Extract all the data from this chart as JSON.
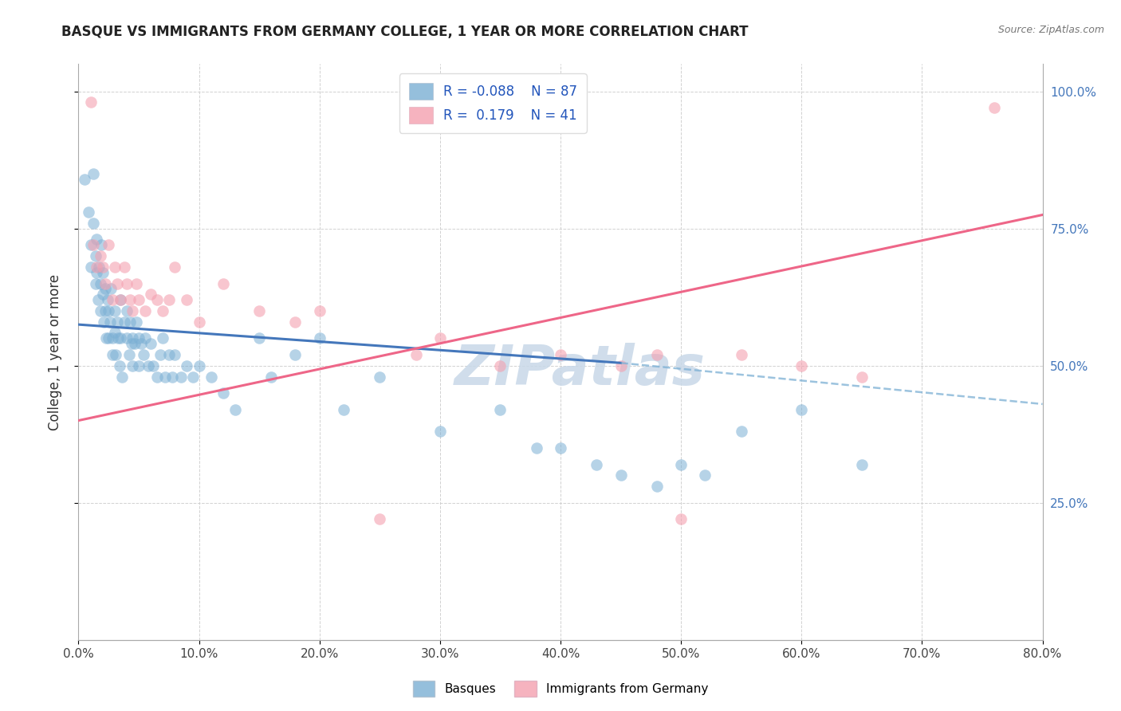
{
  "title": "BASQUE VS IMMIGRANTS FROM GERMANY COLLEGE, 1 YEAR OR MORE CORRELATION CHART",
  "source": "Source: ZipAtlas.com",
  "ylabel_left": "College, 1 year or more",
  "xtick_labels": [
    "0.0%",
    "10.0%",
    "20.0%",
    "30.0%",
    "40.0%",
    "50.0%",
    "60.0%",
    "70.0%",
    "80.0%"
  ],
  "xtick_values": [
    0.0,
    0.1,
    0.2,
    0.3,
    0.4,
    0.5,
    0.6,
    0.7,
    0.8
  ],
  "ytick_right_labels": [
    "100.0%",
    "75.0%",
    "50.0%",
    "25.0%"
  ],
  "ytick_right_values": [
    1.0,
    0.75,
    0.5,
    0.25
  ],
  "xlim": [
    0.0,
    0.8
  ],
  "ylim": [
    0.0,
    1.05
  ],
  "blue_color": "#7BAFD4",
  "pink_color": "#F4A0B0",
  "trend_blue_solid_color": "#4477BB",
  "trend_blue_dash_color": "#7BAFD4",
  "trend_pink_color": "#EE6688",
  "watermark": "ZIPatlas",
  "watermark_color": "#C8D8E8",
  "blue_trend_x0": 0.0,
  "blue_trend_y0": 0.575,
  "blue_trend_x1": 0.45,
  "blue_trend_y1": 0.505,
  "blue_trend_dash_x0": 0.45,
  "blue_trend_dash_y0": 0.505,
  "blue_trend_dash_x1": 0.8,
  "blue_trend_dash_y1": 0.43,
  "pink_trend_x0": 0.0,
  "pink_trend_y0": 0.4,
  "pink_trend_x1": 0.8,
  "pink_trend_y1": 0.775,
  "blue_scatter_x": [
    0.005,
    0.008,
    0.01,
    0.01,
    0.012,
    0.012,
    0.014,
    0.014,
    0.015,
    0.015,
    0.016,
    0.017,
    0.018,
    0.018,
    0.019,
    0.02,
    0.02,
    0.021,
    0.022,
    0.022,
    0.023,
    0.024,
    0.025,
    0.025,
    0.026,
    0.027,
    0.028,
    0.028,
    0.03,
    0.03,
    0.031,
    0.032,
    0.033,
    0.034,
    0.035,
    0.035,
    0.036,
    0.038,
    0.04,
    0.04,
    0.042,
    0.043,
    0.044,
    0.045,
    0.045,
    0.047,
    0.048,
    0.05,
    0.05,
    0.052,
    0.054,
    0.055,
    0.058,
    0.06,
    0.062,
    0.065,
    0.068,
    0.07,
    0.072,
    0.075,
    0.078,
    0.08,
    0.085,
    0.09,
    0.095,
    0.1,
    0.11,
    0.12,
    0.13,
    0.15,
    0.16,
    0.18,
    0.2,
    0.22,
    0.25,
    0.3,
    0.35,
    0.38,
    0.4,
    0.43,
    0.45,
    0.48,
    0.5,
    0.52,
    0.55,
    0.6,
    0.65
  ],
  "blue_scatter_y": [
    0.84,
    0.78,
    0.72,
    0.68,
    0.85,
    0.76,
    0.7,
    0.65,
    0.73,
    0.67,
    0.62,
    0.68,
    0.65,
    0.6,
    0.72,
    0.67,
    0.63,
    0.58,
    0.64,
    0.6,
    0.55,
    0.62,
    0.6,
    0.55,
    0.58,
    0.64,
    0.55,
    0.52,
    0.6,
    0.56,
    0.52,
    0.58,
    0.55,
    0.5,
    0.55,
    0.62,
    0.48,
    0.58,
    0.6,
    0.55,
    0.52,
    0.58,
    0.54,
    0.55,
    0.5,
    0.54,
    0.58,
    0.55,
    0.5,
    0.54,
    0.52,
    0.55,
    0.5,
    0.54,
    0.5,
    0.48,
    0.52,
    0.55,
    0.48,
    0.52,
    0.48,
    0.52,
    0.48,
    0.5,
    0.48,
    0.5,
    0.48,
    0.45,
    0.42,
    0.55,
    0.48,
    0.52,
    0.55,
    0.42,
    0.48,
    0.38,
    0.42,
    0.35,
    0.35,
    0.32,
    0.3,
    0.28,
    0.32,
    0.3,
    0.38,
    0.42,
    0.32
  ],
  "pink_scatter_x": [
    0.01,
    0.012,
    0.015,
    0.018,
    0.02,
    0.022,
    0.025,
    0.028,
    0.03,
    0.032,
    0.035,
    0.038,
    0.04,
    0.043,
    0.045,
    0.048,
    0.05,
    0.055,
    0.06,
    0.065,
    0.07,
    0.075,
    0.08,
    0.09,
    0.1,
    0.12,
    0.15,
    0.18,
    0.2,
    0.25,
    0.28,
    0.3,
    0.35,
    0.4,
    0.45,
    0.48,
    0.5,
    0.55,
    0.6,
    0.65,
    0.76
  ],
  "pink_scatter_y": [
    0.98,
    0.72,
    0.68,
    0.7,
    0.68,
    0.65,
    0.72,
    0.62,
    0.68,
    0.65,
    0.62,
    0.68,
    0.65,
    0.62,
    0.6,
    0.65,
    0.62,
    0.6,
    0.63,
    0.62,
    0.6,
    0.62,
    0.68,
    0.62,
    0.58,
    0.65,
    0.6,
    0.58,
    0.6,
    0.22,
    0.52,
    0.55,
    0.5,
    0.52,
    0.5,
    0.52,
    0.22,
    0.52,
    0.5,
    0.48,
    0.97
  ]
}
